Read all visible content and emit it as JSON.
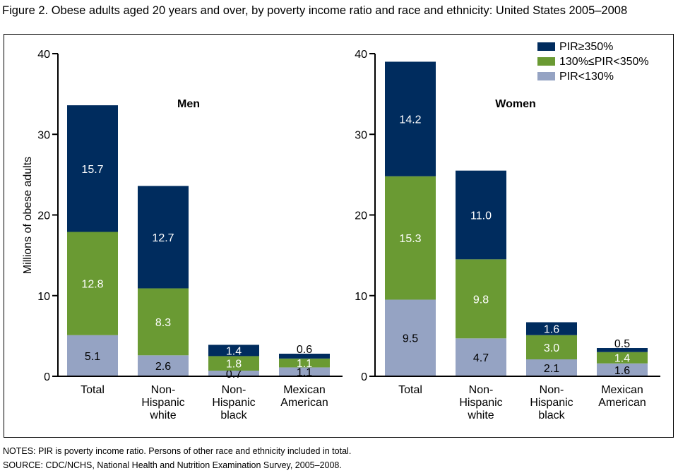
{
  "figure": {
    "title": "Figure 2. Obese adults aged 20 years and over, by poverty income ratio and race and ethnicity: United States 2005–2008",
    "notes": "NOTES: PIR is poverty income ratio. Persons of other race and ethnicity included in total.",
    "source": "SOURCE: CDC/NCHS, National Health and Nutrition Examination Survey, 2005–2008."
  },
  "colors": {
    "pir_high": "#002c5e",
    "pir_mid": "#6a9a33",
    "pir_low": "#95a3c3"
  },
  "chart_data": [
    {
      "type": "bar",
      "stacked": true,
      "title": "Men",
      "xlabel": "",
      "ylabel": "Millions of obese adults",
      "ylim": [
        0,
        40
      ],
      "yticks": [
        0,
        10,
        20,
        30,
        40
      ],
      "grid": false,
      "categories": [
        "Total",
        "Non-\nHispanic\nwhite",
        "Non-\nHispanic\nblack",
        "Mexican\nAmerican"
      ],
      "series": [
        {
          "name": "PIR<130%",
          "color_key": "pir_low",
          "values": [
            5.1,
            2.6,
            0.7,
            1.1
          ]
        },
        {
          "name": "130%≤PIR<350%",
          "color_key": "pir_mid",
          "values": [
            12.8,
            8.3,
            1.8,
            1.1
          ]
        },
        {
          "name": "PIR≥350%",
          "color_key": "pir_high",
          "values": [
            15.7,
            12.7,
            1.4,
            0.6
          ]
        }
      ]
    },
    {
      "type": "bar",
      "stacked": true,
      "title": "Women",
      "xlabel": "",
      "ylabel": "",
      "ylim": [
        0,
        40
      ],
      "yticks": [
        0,
        10,
        20,
        30,
        40
      ],
      "grid": false,
      "legend": {
        "placement": "top-right",
        "entries": [
          "PIR≥350%",
          "130%≤PIR<350%",
          "PIR<130%"
        ]
      },
      "categories": [
        "Total",
        "Non-\nHispanic\nwhite",
        "Non-\nHispanic\nblack",
        "Mexican\nAmerican"
      ],
      "series": [
        {
          "name": "PIR<130%",
          "color_key": "pir_low",
          "values": [
            9.5,
            4.7,
            2.1,
            1.6
          ]
        },
        {
          "name": "130%≤PIR<350%",
          "color_key": "pir_mid",
          "values": [
            15.3,
            9.8,
            3.0,
            1.4
          ]
        },
        {
          "name": "PIR≥350%",
          "color_key": "pir_high",
          "values": [
            14.2,
            11.0,
            1.6,
            0.5
          ]
        }
      ]
    }
  ]
}
